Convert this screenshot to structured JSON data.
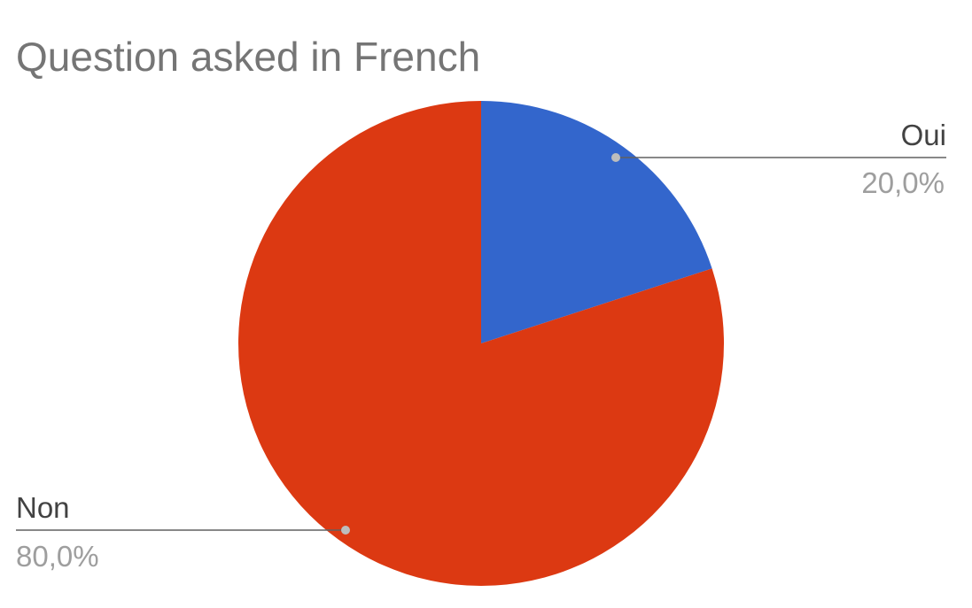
{
  "chart_data": {
    "type": "pie",
    "title": "Question asked in French",
    "slices": [
      {
        "label": "Oui",
        "value": 20.0,
        "display": "20,0%",
        "color": "#3366cc"
      },
      {
        "label": "Non",
        "value": 80.0,
        "display": "80,0%",
        "color": "#dc3912"
      }
    ],
    "start_angle_deg": 0,
    "direction": "clockwise",
    "legend": "labeled",
    "title_color": "#757575",
    "label_color": "#424242",
    "value_color": "#9e9e9e"
  }
}
